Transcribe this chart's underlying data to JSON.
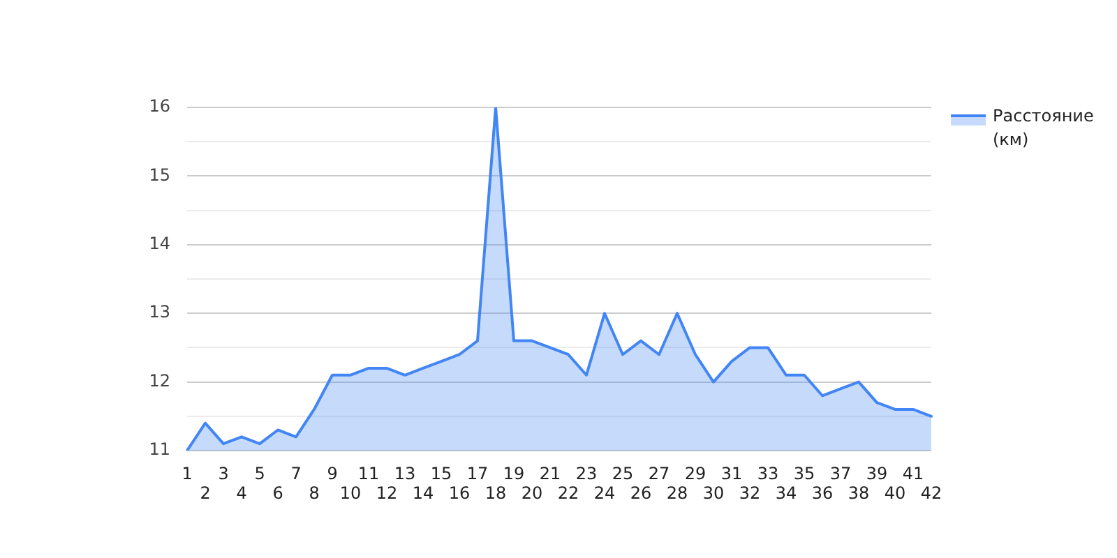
{
  "chart_data": {
    "type": "area",
    "categories": [
      "1",
      "2",
      "3",
      "4",
      "5",
      "6",
      "7",
      "8",
      "9",
      "10",
      "11",
      "12",
      "13",
      "14",
      "15",
      "16",
      "17",
      "18",
      "19",
      "20",
      "21",
      "22",
      "23",
      "24",
      "25",
      "26",
      "27",
      "28",
      "29",
      "30",
      "31",
      "32",
      "33",
      "34",
      "35",
      "36",
      "37",
      "38",
      "39",
      "40",
      "41",
      "42"
    ],
    "series": [
      {
        "name": "Расстояние (км)",
        "color": "#4285f4",
        "values": [
          11.0,
          11.4,
          11.1,
          11.2,
          11.1,
          11.3,
          11.2,
          11.6,
          12.1,
          12.1,
          12.2,
          12.2,
          12.1,
          12.2,
          12.3,
          12.4,
          12.6,
          16.0,
          12.6,
          12.6,
          12.5,
          12.4,
          12.1,
          13.0,
          12.4,
          12.6,
          12.4,
          13.0,
          12.4,
          12.0,
          12.3,
          12.5,
          12.5,
          12.1,
          12.1,
          11.8,
          11.9,
          12.0,
          11.7,
          11.6,
          11.6,
          11.5
        ]
      }
    ],
    "ylim": [
      11,
      16
    ],
    "yticks": [
      11,
      {
        "value": 11.5,
        "label": null
      },
      12,
      {
        "value": 12.5,
        "label": null
      },
      13,
      {
        "value": 13.5,
        "label": null
      },
      14,
      {
        "value": 14.5,
        "label": null
      },
      15,
      {
        "value": 15.5,
        "label": null
      },
      16
    ],
    "grid": "y",
    "legend": "top right"
  }
}
